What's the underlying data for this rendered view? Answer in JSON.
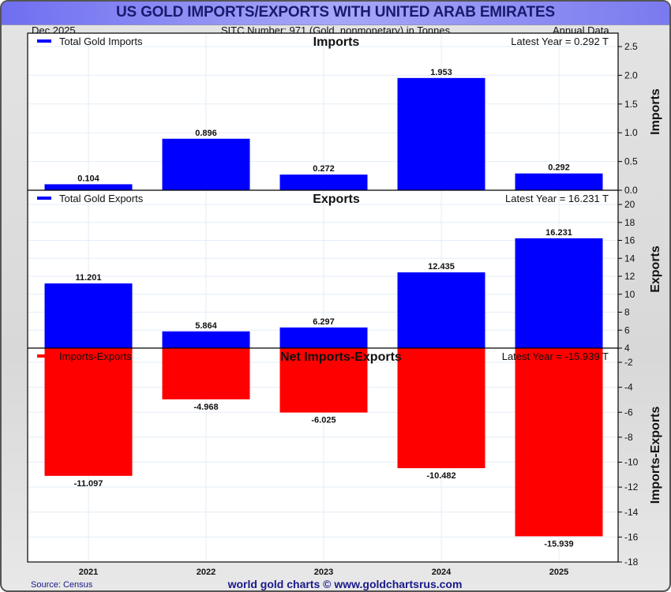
{
  "header": {
    "title": "US GOLD IMPORTS/EXPORTS WITH UNITED ARAB EMIRATES",
    "date": "Dec  2025",
    "subtitle": "SITC Number: 971 (Gold, nonmonetary) in Tonnes",
    "frequency": "Annual Data"
  },
  "footer": {
    "source": "Source: Census",
    "credit": "world gold charts © www.goldchartsrus.com"
  },
  "colors": {
    "imports": "#0000ff",
    "exports": "#0000ff",
    "net": "#ff0000",
    "grid": "#e3edf7"
  },
  "chart_data": [
    {
      "type": "bar",
      "title": "Imports",
      "ylabel": "Imports",
      "legend": "Total Gold Imports",
      "legend_position": "top-left",
      "latest_label": "Latest Year = 0.292 T",
      "categories": [
        "2021",
        "2022",
        "2023",
        "2024",
        "2025"
      ],
      "values": [
        0.104,
        0.896,
        0.272,
        1.953,
        0.292
      ],
      "data_labels": [
        "0.104",
        "0.896",
        "0.272",
        "1.953",
        "0.292"
      ],
      "ylim": [
        0,
        2.5
      ],
      "yticks": [
        0.0,
        0.5,
        1.0,
        1.5,
        2.0,
        2.5
      ],
      "ytick_labels": [
        "0.0",
        "0.5",
        "1.0",
        "1.5",
        "2.0",
        "2.5"
      ],
      "grid": true
    },
    {
      "type": "bar",
      "title": "Exports",
      "ylabel": "Exports",
      "legend": "Total Gold Exports",
      "legend_position": "top-left",
      "latest_label": "Latest Year = 16.231 T",
      "categories": [
        "2021",
        "2022",
        "2023",
        "2024",
        "2025"
      ],
      "values": [
        11.201,
        5.864,
        6.297,
        12.435,
        16.231
      ],
      "data_labels": [
        "11.201",
        "5.864",
        "6.297",
        "12.435",
        "16.231"
      ],
      "ylim": [
        4,
        20
      ],
      "yticks": [
        4,
        6,
        8,
        10,
        12,
        14,
        16,
        18,
        20
      ],
      "ytick_labels": [
        "4",
        "6",
        "8",
        "10",
        "12",
        "14",
        "16",
        "18",
        "20"
      ],
      "grid": true
    },
    {
      "type": "bar",
      "title": "Net Imports-Exports",
      "ylabel": "Imports-Exports",
      "legend": "Imports-Exports",
      "legend_position": "top-left",
      "latest_label": "Latest Year = -15.939 T",
      "categories": [
        "2021",
        "2022",
        "2023",
        "2024",
        "2025"
      ],
      "values": [
        -11.097,
        -4.968,
        -6.025,
        -10.482,
        -15.939
      ],
      "data_labels": [
        "-11.097",
        "-4.968",
        "-6.025",
        "-10.482",
        "-15.939"
      ],
      "ylim": [
        -18,
        -1.1
      ],
      "yticks": [
        -2,
        -4,
        -6,
        -8,
        -10,
        -12,
        -14,
        -16,
        -18
      ],
      "ytick_labels": [
        "-2",
        "-4",
        "-6",
        "-8",
        "-10",
        "-12",
        "-14",
        "-16",
        "-18"
      ],
      "grid": true
    }
  ]
}
